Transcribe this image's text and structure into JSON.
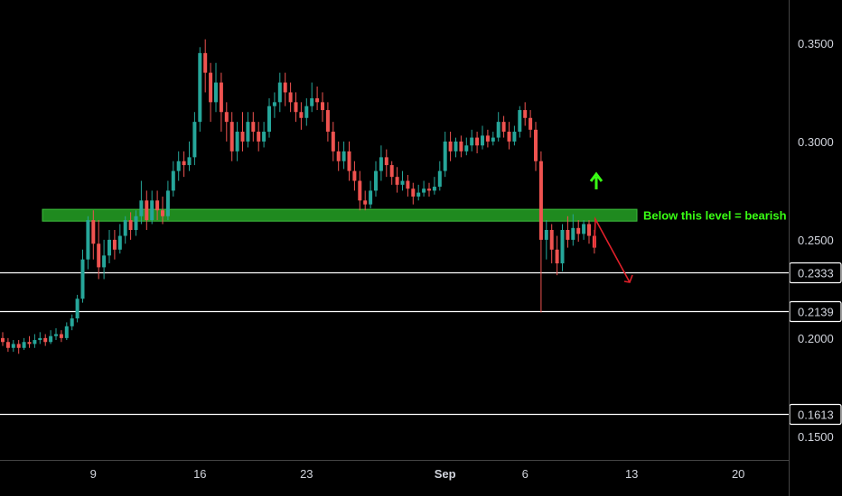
{
  "colors": {
    "background": "#000000",
    "up": "#26a69a",
    "down": "#ef5350",
    "zone": "#1f8a1f",
    "zone_border": "#3cbf3c",
    "note_text": "#39ff14",
    "up_arrow": "#39ff14",
    "down_arrow": "#e0202a",
    "level_line": "#ffffff",
    "axis_text": "#d1d4dc",
    "axis_line": "#444444"
  },
  "annotation": {
    "text": "Below this level = bearish",
    "zone_low": 0.2595,
    "zone_high": 0.2655,
    "up_arrow_icon": "up-arrow-icon",
    "down_arrow_icon": "down-arrow-icon"
  },
  "chart_data": {
    "type": "candlestick",
    "y_axis": {
      "ticks": [
        0.35,
        0.3,
        0.25,
        0.2,
        0.15
      ],
      "tick_labels": [
        "0.3500",
        "0.3000",
        "0.2500",
        "0.2000",
        "0.1500"
      ],
      "range": [
        0.138,
        0.372
      ]
    },
    "x_axis": {
      "tick_labels": [
        "9",
        "16",
        "23",
        "Sep",
        "6",
        "13",
        "20"
      ],
      "tick_candle_index": [
        17,
        37,
        57,
        83,
        98,
        118,
        138
      ]
    },
    "levels": [
      {
        "value": 0.2333,
        "label": "0.2333"
      },
      {
        "value": 0.2139,
        "label": "0.2139"
      },
      {
        "value": 0.1613,
        "label": "0.1613"
      }
    ],
    "candles": [
      [
        0.2,
        0.198,
        0.203,
        0.196
      ],
      [
        0.198,
        0.195,
        0.2,
        0.193
      ],
      [
        0.195,
        0.197,
        0.199,
        0.193
      ],
      [
        0.197,
        0.195,
        0.199,
        0.192
      ],
      [
        0.195,
        0.198,
        0.2,
        0.194
      ],
      [
        0.198,
        0.197,
        0.201,
        0.195
      ],
      [
        0.197,
        0.199,
        0.202,
        0.195
      ],
      [
        0.199,
        0.2,
        0.203,
        0.197
      ],
      [
        0.2,
        0.198,
        0.202,
        0.196
      ],
      [
        0.198,
        0.201,
        0.204,
        0.197
      ],
      [
        0.201,
        0.202,
        0.205,
        0.199
      ],
      [
        0.202,
        0.2,
        0.204,
        0.198
      ],
      [
        0.2,
        0.206,
        0.208,
        0.199
      ],
      [
        0.206,
        0.21,
        0.212,
        0.204
      ],
      [
        0.21,
        0.22,
        0.222,
        0.208
      ],
      [
        0.22,
        0.24,
        0.245,
        0.218
      ],
      [
        0.24,
        0.26,
        0.262,
        0.235
      ],
      [
        0.26,
        0.248,
        0.265,
        0.24
      ],
      [
        0.248,
        0.236,
        0.26,
        0.23
      ],
      [
        0.236,
        0.242,
        0.25,
        0.23
      ],
      [
        0.242,
        0.25,
        0.255,
        0.238
      ],
      [
        0.25,
        0.245,
        0.255,
        0.24
      ],
      [
        0.245,
        0.252,
        0.258,
        0.243
      ],
      [
        0.252,
        0.26,
        0.262,
        0.248
      ],
      [
        0.26,
        0.255,
        0.264,
        0.25
      ],
      [
        0.255,
        0.262,
        0.265,
        0.252
      ],
      [
        0.262,
        0.27,
        0.28,
        0.258
      ],
      [
        0.27,
        0.26,
        0.275,
        0.255
      ],
      [
        0.26,
        0.27,
        0.275,
        0.258
      ],
      [
        0.27,
        0.265,
        0.275,
        0.26
      ],
      [
        0.265,
        0.262,
        0.272,
        0.258
      ],
      [
        0.262,
        0.275,
        0.28,
        0.26
      ],
      [
        0.275,
        0.285,
        0.29,
        0.272
      ],
      [
        0.285,
        0.29,
        0.295,
        0.28
      ],
      [
        0.29,
        0.288,
        0.295,
        0.282
      ],
      [
        0.288,
        0.292,
        0.3,
        0.285
      ],
      [
        0.292,
        0.31,
        0.315,
        0.288
      ],
      [
        0.31,
        0.345,
        0.348,
        0.305
      ],
      [
        0.345,
        0.335,
        0.352,
        0.325
      ],
      [
        0.335,
        0.32,
        0.34,
        0.31
      ],
      [
        0.32,
        0.33,
        0.34,
        0.315
      ],
      [
        0.33,
        0.315,
        0.335,
        0.305
      ],
      [
        0.315,
        0.31,
        0.32,
        0.3
      ],
      [
        0.31,
        0.295,
        0.315,
        0.29
      ],
      [
        0.295,
        0.305,
        0.31,
        0.29
      ],
      [
        0.305,
        0.3,
        0.315,
        0.295
      ],
      [
        0.3,
        0.31,
        0.315,
        0.297
      ],
      [
        0.31,
        0.305,
        0.315,
        0.3
      ],
      [
        0.305,
        0.3,
        0.31,
        0.295
      ],
      [
        0.3,
        0.305,
        0.31,
        0.297
      ],
      [
        0.305,
        0.318,
        0.322,
        0.302
      ],
      [
        0.318,
        0.32,
        0.325,
        0.312
      ],
      [
        0.32,
        0.33,
        0.335,
        0.315
      ],
      [
        0.33,
        0.325,
        0.335,
        0.318
      ],
      [
        0.325,
        0.32,
        0.33,
        0.315
      ],
      [
        0.32,
        0.315,
        0.325,
        0.31
      ],
      [
        0.315,
        0.312,
        0.32,
        0.306
      ],
      [
        0.312,
        0.318,
        0.322,
        0.308
      ],
      [
        0.318,
        0.322,
        0.33,
        0.315
      ],
      [
        0.322,
        0.32,
        0.328,
        0.316
      ],
      [
        0.32,
        0.316,
        0.325,
        0.31
      ],
      [
        0.316,
        0.305,
        0.32,
        0.3
      ],
      [
        0.305,
        0.295,
        0.31,
        0.29
      ],
      [
        0.295,
        0.29,
        0.3,
        0.285
      ],
      [
        0.29,
        0.295,
        0.3,
        0.286
      ],
      [
        0.295,
        0.285,
        0.3,
        0.28
      ],
      [
        0.285,
        0.28,
        0.29,
        0.275
      ],
      [
        0.28,
        0.27,
        0.285,
        0.265
      ],
      [
        0.27,
        0.268,
        0.275,
        0.265
      ],
      [
        0.268,
        0.275,
        0.28,
        0.266
      ],
      [
        0.275,
        0.285,
        0.29,
        0.272
      ],
      [
        0.285,
        0.292,
        0.298,
        0.28
      ],
      [
        0.292,
        0.288,
        0.296,
        0.282
      ],
      [
        0.288,
        0.282,
        0.29,
        0.278
      ],
      [
        0.282,
        0.278,
        0.287,
        0.274
      ],
      [
        0.278,
        0.28,
        0.285,
        0.275
      ],
      [
        0.28,
        0.276,
        0.283,
        0.272
      ],
      [
        0.276,
        0.272,
        0.279,
        0.268
      ],
      [
        0.272,
        0.274,
        0.278,
        0.27
      ],
      [
        0.274,
        0.276,
        0.28,
        0.272
      ],
      [
        0.276,
        0.275,
        0.279,
        0.272
      ],
      [
        0.275,
        0.277,
        0.282,
        0.273
      ],
      [
        0.277,
        0.285,
        0.29,
        0.275
      ],
      [
        0.285,
        0.3,
        0.305,
        0.282
      ],
      [
        0.3,
        0.295,
        0.305,
        0.29
      ],
      [
        0.295,
        0.3,
        0.302,
        0.292
      ],
      [
        0.3,
        0.295,
        0.303,
        0.292
      ],
      [
        0.295,
        0.298,
        0.302,
        0.293
      ],
      [
        0.298,
        0.302,
        0.306,
        0.295
      ],
      [
        0.302,
        0.298,
        0.305,
        0.294
      ],
      [
        0.298,
        0.303,
        0.308,
        0.296
      ],
      [
        0.303,
        0.3,
        0.306,
        0.297
      ],
      [
        0.3,
        0.302,
        0.305,
        0.298
      ],
      [
        0.302,
        0.31,
        0.315,
        0.3
      ],
      [
        0.31,
        0.305,
        0.313,
        0.302
      ],
      [
        0.305,
        0.3,
        0.31,
        0.296
      ],
      [
        0.3,
        0.305,
        0.308,
        0.298
      ],
      [
        0.305,
        0.316,
        0.318,
        0.302
      ],
      [
        0.316,
        0.312,
        0.32,
        0.308
      ],
      [
        0.312,
        0.306,
        0.316,
        0.302
      ],
      [
        0.306,
        0.29,
        0.31,
        0.285
      ],
      [
        0.29,
        0.25,
        0.295,
        0.213
      ],
      [
        0.25,
        0.255,
        0.26,
        0.24
      ],
      [
        0.255,
        0.245,
        0.258,
        0.238
      ],
      [
        0.245,
        0.238,
        0.252,
        0.232
      ],
      [
        0.238,
        0.255,
        0.258,
        0.234
      ],
      [
        0.255,
        0.25,
        0.262,
        0.246
      ],
      [
        0.25,
        0.256,
        0.263,
        0.247
      ],
      [
        0.256,
        0.253,
        0.26,
        0.249
      ],
      [
        0.253,
        0.258,
        0.26,
        0.25
      ],
      [
        0.258,
        0.252,
        0.26,
        0.248
      ],
      [
        0.252,
        0.246,
        0.255,
        0.243
      ]
    ]
  }
}
